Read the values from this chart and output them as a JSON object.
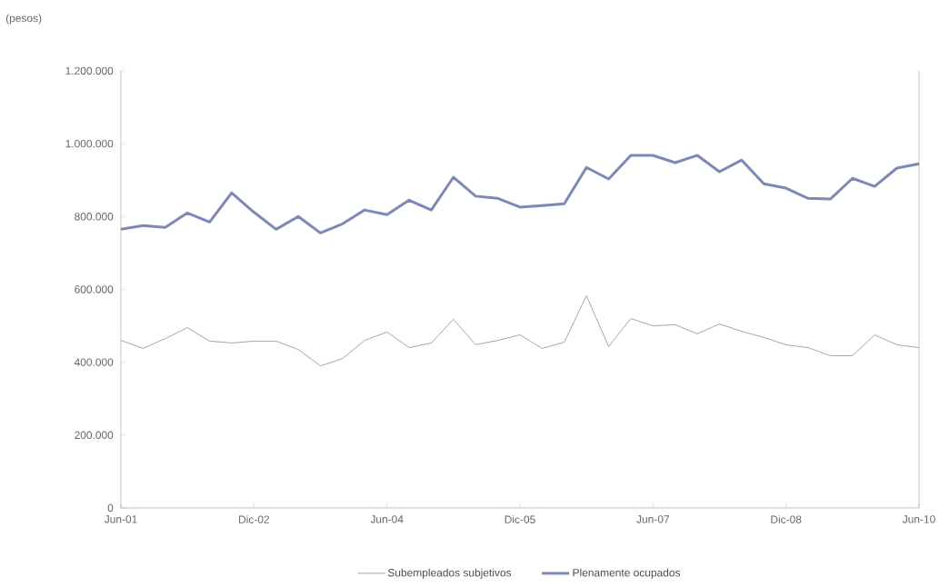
{
  "chart_data": {
    "type": "line",
    "ylabel": "(pesos)",
    "categories": [
      "Jun-01",
      null,
      null,
      null,
      null,
      null,
      "Dic-02",
      null,
      null,
      null,
      null,
      null,
      "Jun-04",
      null,
      null,
      null,
      null,
      null,
      "Dic-05",
      null,
      null,
      null,
      null,
      null,
      "Jun-07",
      null,
      null,
      null,
      null,
      null,
      "Dic-08",
      null,
      null,
      null,
      null,
      null,
      "Jun-10"
    ],
    "series": [
      {
        "name": "Subempleados subjetivos",
        "color": "#9a9a9a",
        "values": [
          460000,
          438000,
          465000,
          495000,
          458000,
          453000,
          458000,
          458000,
          435000,
          390000,
          410000,
          460000,
          483000,
          440000,
          453000,
          518000,
          448000,
          460000,
          475000,
          438000,
          455000,
          583000,
          443000,
          520000,
          500000,
          503000,
          478000,
          505000,
          485000,
          468000,
          448000,
          440000,
          418000,
          418000,
          475000,
          448000,
          440000
        ]
      },
      {
        "name": "Plenamente ocupados",
        "color": "#7d87b8",
        "values": [
          765000,
          775000,
          770000,
          810000,
          785000,
          865000,
          812000,
          765000,
          800000,
          755000,
          780000,
          818000,
          805000,
          845000,
          818000,
          908000,
          856000,
          850000,
          826000,
          830000,
          835000,
          935000,
          903000,
          968000,
          968000,
          948000,
          968000,
          923000,
          955000,
          890000,
          878000,
          850000,
          848000,
          905000,
          883000,
          933000,
          945000
        ]
      }
    ],
    "ylim": [
      0,
      1200000
    ],
    "yticks": [
      {
        "value": 0,
        "label": "0"
      },
      {
        "value": 200000,
        "label": "200.000"
      },
      {
        "value": 400000,
        "label": "400.000"
      },
      {
        "value": 600000,
        "label": "600.000"
      },
      {
        "value": 800000,
        "label": "800.000"
      },
      {
        "value": 1000000,
        "label": "1.000.000"
      },
      {
        "value": 1200000,
        "label": "1.200.000"
      }
    ],
    "grid": false,
    "legend": "bottom",
    "marker": "none",
    "line_style": "solid"
  }
}
